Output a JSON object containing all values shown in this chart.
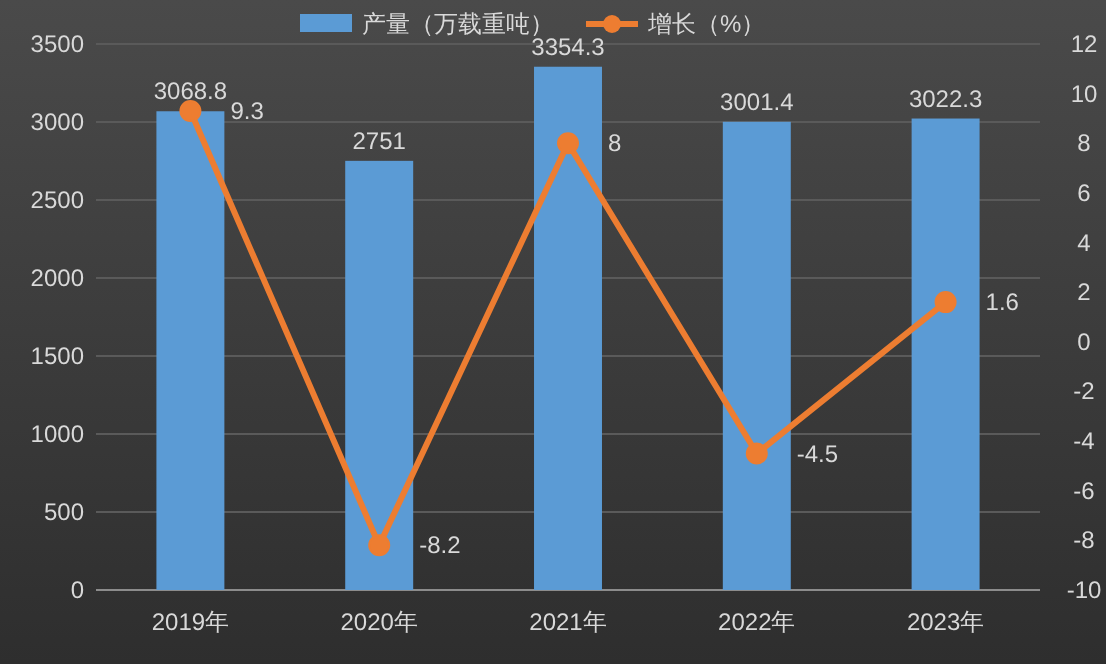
{
  "chart_data": {
    "type": "bar",
    "categories": [
      "2019年",
      "2020年",
      "2021年",
      "2022年",
      "2023年"
    ],
    "series": [
      {
        "name": "产量（万载重吨）",
        "color": "#5b9bd5",
        "values": [
          3068.8,
          2751,
          3354.3,
          3001.4,
          3022.3
        ]
      },
      {
        "name": "增长（%）",
        "type": "line",
        "axis": "y2",
        "color": "#ed7d31",
        "marker": "circle",
        "values": [
          9.3,
          -8.2,
          8,
          -4.5,
          1.6
        ]
      }
    ],
    "ylim": [
      0,
      3500
    ],
    "yticks": [
      0,
      500,
      1000,
      1500,
      2000,
      2500,
      3000,
      3500
    ],
    "y2lim": [
      -10,
      12
    ],
    "y2ticks": [
      -10,
      -8,
      -6,
      -4,
      -2,
      0,
      2,
      4,
      6,
      8,
      10,
      12
    ],
    "grid": "y",
    "legend": "top",
    "data_labels": true
  }
}
